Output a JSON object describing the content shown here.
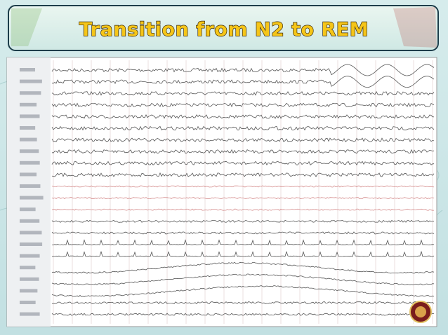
{
  "header": {
    "title": "Transition from N2 to REM"
  }
}
